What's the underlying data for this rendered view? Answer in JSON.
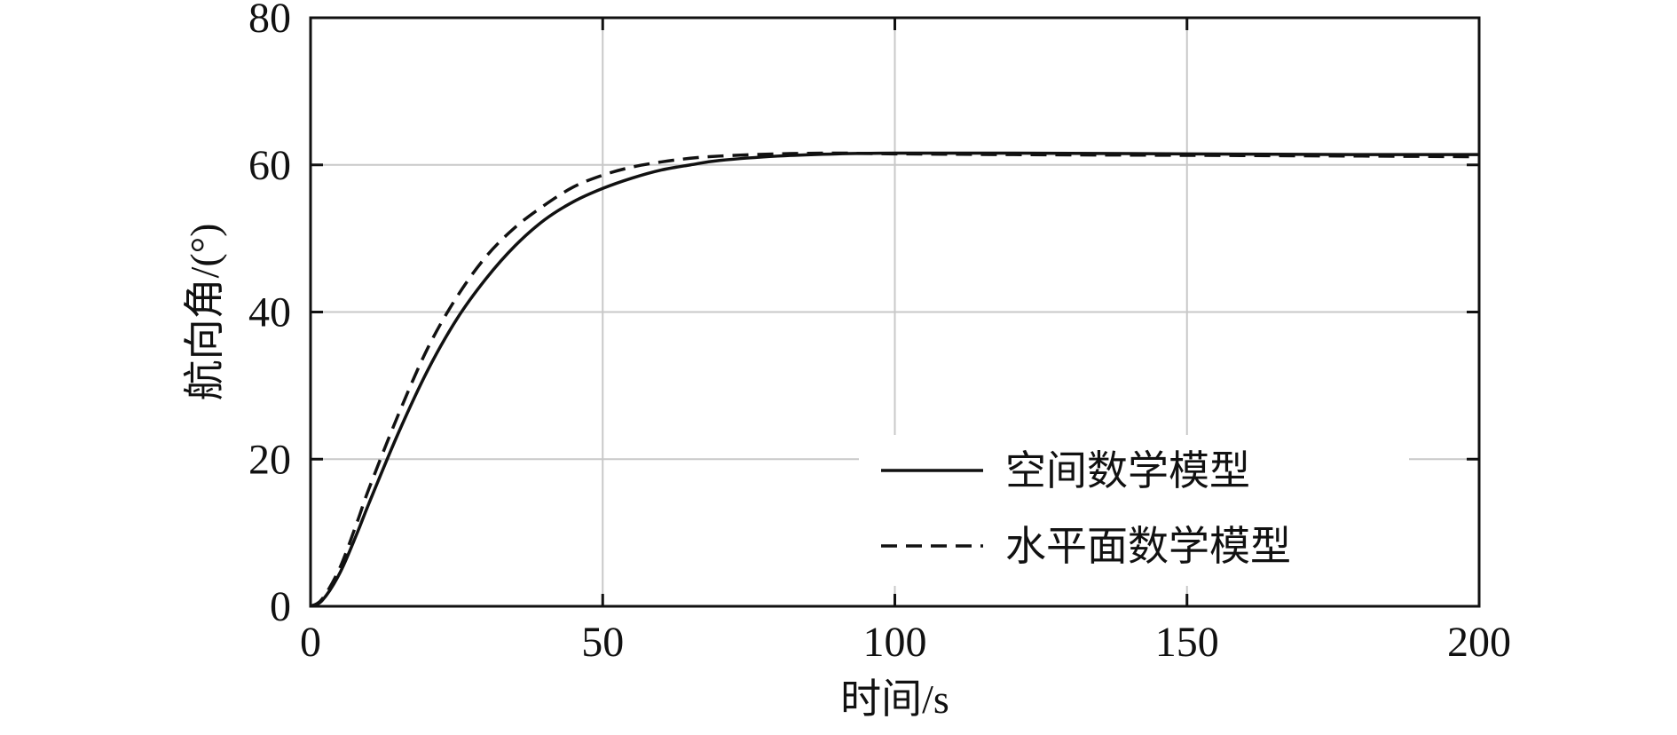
{
  "chart_data": {
    "type": "line",
    "xlabel": "时间/s",
    "ylabel": "航向角/(°)",
    "xlim": [
      0,
      200
    ],
    "ylim": [
      0,
      80
    ],
    "x_ticks": [
      0,
      50,
      100,
      150,
      200
    ],
    "y_ticks": [
      0,
      20,
      40,
      60,
      80
    ],
    "grid": true,
    "legend_position": "bottom-right",
    "series": [
      {
        "name": "空间数学模型",
        "line_style": "solid",
        "color": "#111111",
        "points": [
          [
            0,
            0
          ],
          [
            2,
            0.8
          ],
          [
            5,
            4.5
          ],
          [
            8,
            10.0
          ],
          [
            10,
            14.0
          ],
          [
            15,
            23.5
          ],
          [
            20,
            32.0
          ],
          [
            25,
            39.0
          ],
          [
            30,
            44.5
          ],
          [
            35,
            49.0
          ],
          [
            40,
            52.5
          ],
          [
            45,
            55.0
          ],
          [
            50,
            56.8
          ],
          [
            55,
            58.2
          ],
          [
            60,
            59.3
          ],
          [
            65,
            60.0
          ],
          [
            70,
            60.6
          ],
          [
            80,
            61.2
          ],
          [
            90,
            61.5
          ],
          [
            100,
            61.6
          ],
          [
            120,
            61.6
          ],
          [
            150,
            61.5
          ],
          [
            180,
            61.4
          ],
          [
            200,
            61.4
          ]
        ]
      },
      {
        "name": "水平面数学模型",
        "line_style": "dashed",
        "color": "#111111",
        "points": [
          [
            0,
            0
          ],
          [
            2,
            1.0
          ],
          [
            5,
            5.2
          ],
          [
            8,
            11.5
          ],
          [
            10,
            16.0
          ],
          [
            15,
            26.0
          ],
          [
            20,
            35.0
          ],
          [
            25,
            42.0
          ],
          [
            30,
            47.5
          ],
          [
            35,
            51.5
          ],
          [
            40,
            54.5
          ],
          [
            45,
            57.0
          ],
          [
            50,
            58.6
          ],
          [
            55,
            59.7
          ],
          [
            60,
            60.4
          ],
          [
            65,
            60.9
          ],
          [
            70,
            61.2
          ],
          [
            80,
            61.5
          ],
          [
            90,
            61.6
          ],
          [
            100,
            61.5
          ],
          [
            120,
            61.4
          ],
          [
            150,
            61.3
          ],
          [
            180,
            61.2
          ],
          [
            200,
            61.1
          ]
        ]
      }
    ]
  }
}
